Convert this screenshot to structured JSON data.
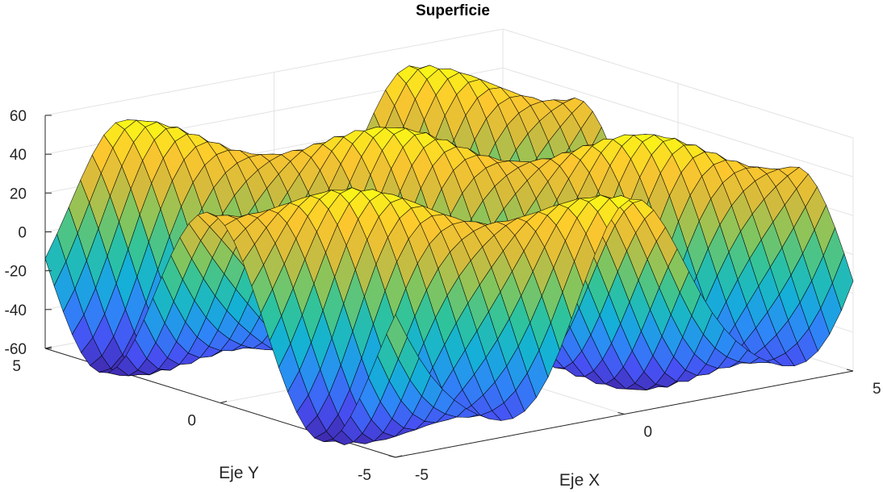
{
  "chart_data": {
    "type": "surface",
    "title": "Superficie",
    "xlabel": "Eje X",
    "ylabel": "Eje Y",
    "zlabel": "",
    "xlim": [
      -5,
      5
    ],
    "ylim": [
      -5,
      5
    ],
    "zlim": [
      -60,
      60
    ],
    "x_ticks": [
      "-5",
      "0",
      "5"
    ],
    "y_ticks": [
      "-5",
      "0",
      "5"
    ],
    "z_ticks": [
      "-60",
      "-40",
      "-20",
      "0",
      "20",
      "40",
      "60"
    ],
    "grid": true,
    "colormap": "parula",
    "colormap_colors": [
      "#3E26A8",
      "#4750F3",
      "#2E87F7",
      "#14B1D6",
      "#2FC39C",
      "#85C55D",
      "#D4BA3C",
      "#FDC72E",
      "#F9FB15"
    ],
    "edge_color": "#000000",
    "surface_function": "z(x,y) = 50*sin(x + y) - 7 + 8*cos(2*x)",
    "mesh_points": 40
  }
}
